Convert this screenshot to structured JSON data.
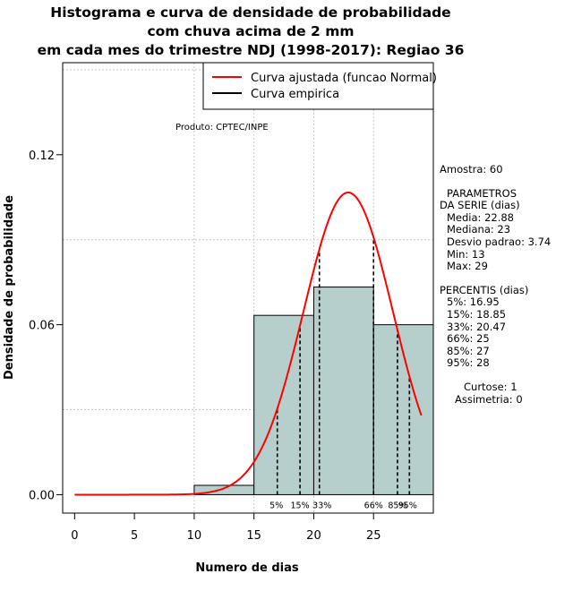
{
  "title": {
    "line1": "Histograma e curva de densidade de probabilidade",
    "line2": "com chuva acima de 2 mm",
    "line3": "em cada mes do trimestre NDJ (1998-2017): Regiao 36"
  },
  "product_label": "Produto: CPTEC/INPE",
  "legend": {
    "fitted": "Curva ajustada (funcao Normal)",
    "empirical": "Curva empirica",
    "fitted_color": "#ff0000",
    "empirical_color": "#000000",
    "placement": "top-right"
  },
  "stats": {
    "sample": "Amostra: 60",
    "params_title1": "PARAMETROS",
    "params_title2": "DA SERIE (dias)",
    "media": "Media: 22.88",
    "mediana": "Mediana: 23",
    "desvio": "Desvio padrao: 3.74",
    "min": "Min: 13",
    "max": "Max: 29",
    "percentis_title": "PERCENTIS (dias)",
    "p5": "5%: 16.95",
    "p15": "15%: 18.85",
    "p33": "33%: 20.47",
    "p66": "66%: 25",
    "p85": "85%: 27",
    "p95": "95%: 28",
    "curtose": "Curtose: 1",
    "assimetria": "Assimetria: 0"
  },
  "chart_data": {
    "type": "bar",
    "xlabel": "Numero de dias",
    "ylabel": "Densidade de probabilidade",
    "xlim": [
      -1,
      30
    ],
    "ylim": [
      -0.0065,
      0.1525
    ],
    "x_ticks": [
      0,
      5,
      10,
      15,
      20,
      25
    ],
    "y_ticks": [
      "0.00",
      "0.06",
      "0.12"
    ],
    "grid": true,
    "bar_color": "#b7cfcc",
    "histogram": [
      {
        "x0": 10,
        "x1": 15,
        "density": 0.0033
      },
      {
        "x0": 15,
        "x1": 20,
        "density": 0.0633
      },
      {
        "x0": 20,
        "x1": 25,
        "density": 0.0733
      },
      {
        "x0": 25,
        "x1": 30,
        "density": 0.06
      }
    ],
    "normal_fit": {
      "mean": 22.88,
      "sd": 3.74,
      "x_range": [
        0,
        29
      ],
      "color": "#ff0000"
    },
    "percentiles": [
      {
        "label": "5%",
        "x": 16.95
      },
      {
        "label": "15%",
        "x": 18.85
      },
      {
        "label": "33%",
        "x": 20.47
      },
      {
        "label": "66%",
        "x": 25
      },
      {
        "label": "85%",
        "x": 27
      },
      {
        "label": "95%",
        "x": 28
      }
    ]
  }
}
